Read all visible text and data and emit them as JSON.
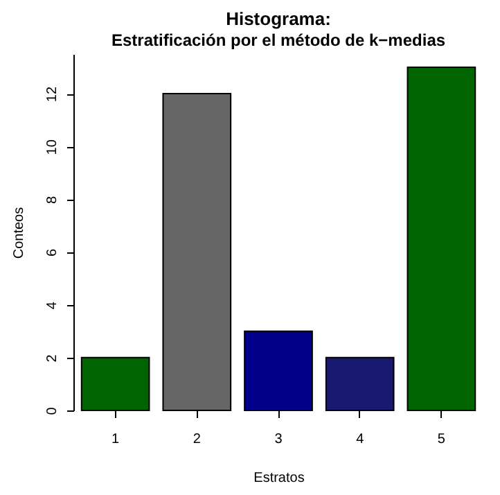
{
  "chart_data": {
    "type": "bar",
    "title": "Histograma:",
    "subtitle": "Estratificación por el método de k−medias",
    "xlabel": "Estratos",
    "ylabel": "Conteos",
    "categories": [
      "1",
      "2",
      "3",
      "4",
      "5"
    ],
    "values": [
      2,
      12,
      3,
      2,
      13
    ],
    "colors": [
      "#006400",
      "#666666",
      "#00008b",
      "#191970",
      "#006400"
    ],
    "ylim": [
      0,
      13.5
    ],
    "yticks": [
      0,
      2,
      4,
      6,
      8,
      10,
      12
    ]
  }
}
